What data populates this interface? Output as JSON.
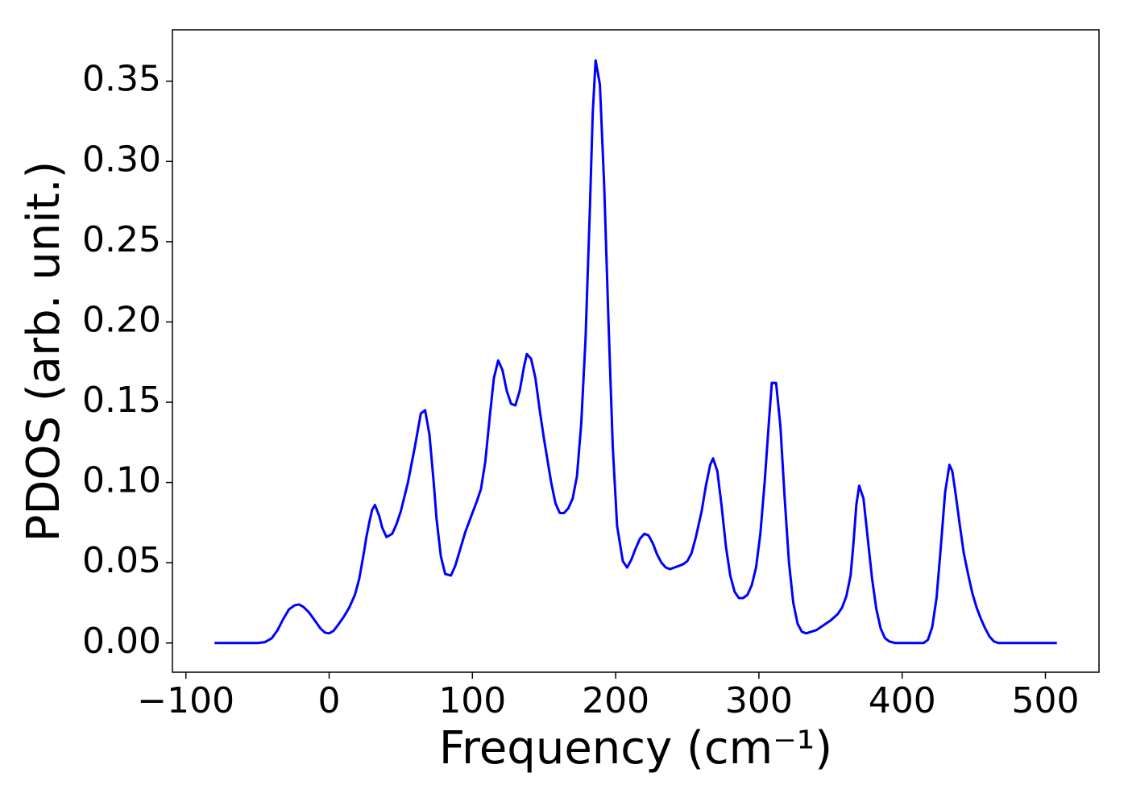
{
  "chart_data": {
    "type": "line",
    "xlabel": "Frequency (cm⁻¹)",
    "ylabel": "PDOS (arb. unit.)",
    "xlim": [
      -109.4,
      537.4
    ],
    "ylim": [
      -0.0182,
      0.382
    ],
    "xticks": [
      {
        "value": -100,
        "label": "−100"
      },
      0,
      100,
      200,
      300,
      400,
      500
    ],
    "yticks": [
      {
        "value": 0,
        "label": "0.00"
      },
      0.05,
      {
        "value": 0.1,
        "label": "0.10"
      },
      0.15,
      {
        "value": 0.2,
        "label": "0.20"
      },
      0.25,
      {
        "value": 0.3,
        "label": "0.30"
      },
      0.35
    ],
    "grid": false,
    "series": [
      {
        "color": "#0000ff",
        "x": [
          -80,
          -70,
          -60,
          -50,
          -45,
          -40,
          -36,
          -32,
          -28,
          -24,
          -21,
          -18,
          -14,
          -10,
          -6,
          -3,
          0,
          3,
          6,
          10,
          14,
          18,
          21,
          24,
          26,
          28,
          30,
          32,
          35,
          37,
          40,
          44,
          47,
          50,
          55,
          60,
          64,
          67,
          70,
          73,
          75,
          78,
          81,
          85,
          88,
          92,
          95,
          100,
          103,
          106,
          109,
          112,
          115,
          118,
          121,
          124,
          127,
          130,
          133,
          136,
          138,
          141,
          144,
          147,
          150,
          155,
          158,
          161,
          164,
          167,
          170,
          173,
          176,
          179,
          182,
          184,
          186,
          189,
          192,
          195,
          198,
          201,
          205,
          208,
          211,
          214,
          217,
          220,
          223,
          226,
          229,
          232,
          235,
          238,
          241,
          244,
          247,
          250,
          253,
          256,
          260,
          263,
          266,
          268,
          271,
          274,
          277,
          280,
          283,
          286,
          289,
          292,
          295,
          298,
          301,
          304,
          307,
          309,
          312,
          315,
          318,
          321,
          324,
          327,
          330,
          333,
          340,
          345,
          350,
          355,
          358,
          361,
          364,
          366,
          368,
          370,
          373,
          376,
          379,
          382,
          385,
          388,
          391,
          395,
          405,
          415,
          418,
          421,
          424,
          427,
          430,
          433,
          435,
          437,
          440,
          443,
          446,
          449,
          452,
          455,
          458,
          461,
          464,
          467,
          475,
          490,
          508
        ],
        "values": [
          0,
          0,
          0,
          0,
          0.0005,
          0.003,
          0.008,
          0.015,
          0.021,
          0.0235,
          0.024,
          0.0225,
          0.019,
          0.014,
          0.009,
          0.0065,
          0.006,
          0.0075,
          0.011,
          0.016,
          0.022,
          0.03,
          0.04,
          0.055,
          0.066,
          0.075,
          0.083,
          0.086,
          0.079,
          0.072,
          0.066,
          0.068,
          0.074,
          0.082,
          0.1,
          0.123,
          0.143,
          0.145,
          0.13,
          0.1,
          0.077,
          0.054,
          0.043,
          0.042,
          0.048,
          0.06,
          0.069,
          0.081,
          0.088,
          0.096,
          0.113,
          0.14,
          0.165,
          0.176,
          0.17,
          0.157,
          0.149,
          0.148,
          0.157,
          0.172,
          0.18,
          0.177,
          0.165,
          0.145,
          0.127,
          0.1,
          0.087,
          0.081,
          0.081,
          0.084,
          0.09,
          0.104,
          0.137,
          0.19,
          0.27,
          0.33,
          0.363,
          0.348,
          0.285,
          0.2,
          0.122,
          0.073,
          0.051,
          0.047,
          0.052,
          0.059,
          0.065,
          0.068,
          0.067,
          0.062,
          0.055,
          0.05,
          0.047,
          0.046,
          0.047,
          0.048,
          0.049,
          0.051,
          0.056,
          0.066,
          0.082,
          0.098,
          0.111,
          0.115,
          0.107,
          0.085,
          0.06,
          0.042,
          0.032,
          0.028,
          0.028,
          0.03,
          0.036,
          0.047,
          0.068,
          0.1,
          0.138,
          0.162,
          0.162,
          0.135,
          0.09,
          0.05,
          0.025,
          0.012,
          0.007,
          0.006,
          0.008,
          0.011,
          0.014,
          0.018,
          0.022,
          0.029,
          0.042,
          0.062,
          0.086,
          0.098,
          0.09,
          0.065,
          0.04,
          0.021,
          0.009,
          0.003,
          0.001,
          0,
          0,
          0,
          0.002,
          0.01,
          0.028,
          0.06,
          0.094,
          0.111,
          0.107,
          0.095,
          0.075,
          0.056,
          0.043,
          0.031,
          0.022,
          0.015,
          0.009,
          0.004,
          0.001,
          0,
          0,
          0,
          0
        ]
      }
    ]
  }
}
